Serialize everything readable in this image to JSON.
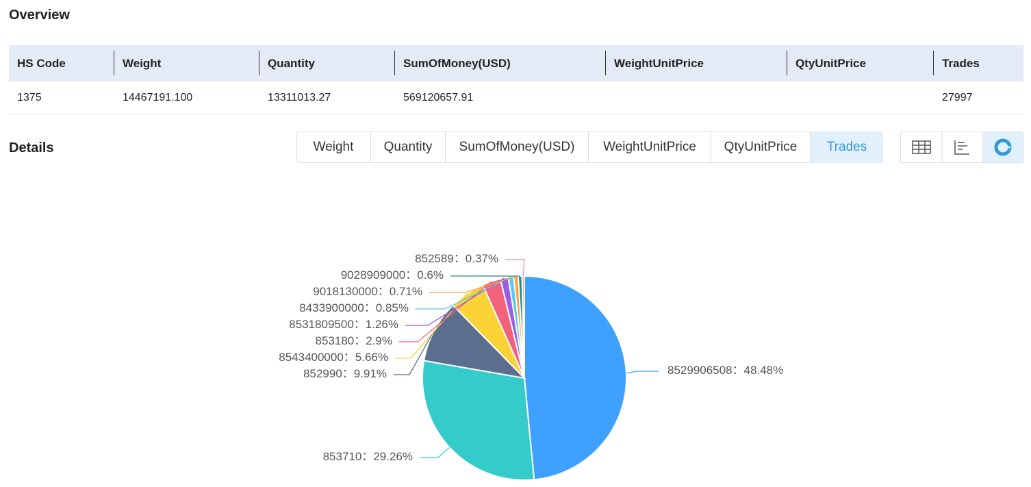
{
  "overview": {
    "title": "Overview",
    "table": {
      "headers": [
        "HS Code",
        "Weight",
        "Quantity",
        "SumOfMoney(USD)",
        "WeightUnitPrice",
        "QtyUnitPrice",
        "Trades"
      ],
      "rows": [
        [
          "1375",
          "14467191.100",
          "13311013.27",
          "569120657.91",
          null,
          null,
          "27997"
        ]
      ]
    }
  },
  "details": {
    "title": "Details",
    "tabs": [
      "Weight",
      "Quantity",
      "SumOfMoney(USD)",
      "WeightUnitPrice",
      "QtyUnitPrice",
      "Trades"
    ],
    "active_tab": 5
  },
  "chart_data": {
    "type": "pie",
    "label_separator": "：",
    "categories": [
      "8529906508",
      "853710",
      "852990",
      "8543400000",
      "853180",
      "8531809500",
      "8433900000",
      "9018130000",
      "9028909000",
      "852589"
    ],
    "values": [
      48.48,
      29.26,
      9.91,
      5.66,
      2.9,
      1.26,
      0.85,
      0.71,
      0.6,
      0.37
    ],
    "value_labels": [
      "48.48%",
      "29.26%",
      "9.91%",
      "5.66%",
      "2.9%",
      "1.26%",
      "0.85%",
      "0.71%",
      "0.6%",
      "0.37%"
    ],
    "colors": [
      "#3fa1ff",
      "#36cbcb",
      "#5b6e8e",
      "#fad337",
      "#f2637b",
      "#975fe5",
      "#5dc9ec",
      "#ff9f40",
      "#1e8c80",
      "#f28cb4"
    ]
  }
}
